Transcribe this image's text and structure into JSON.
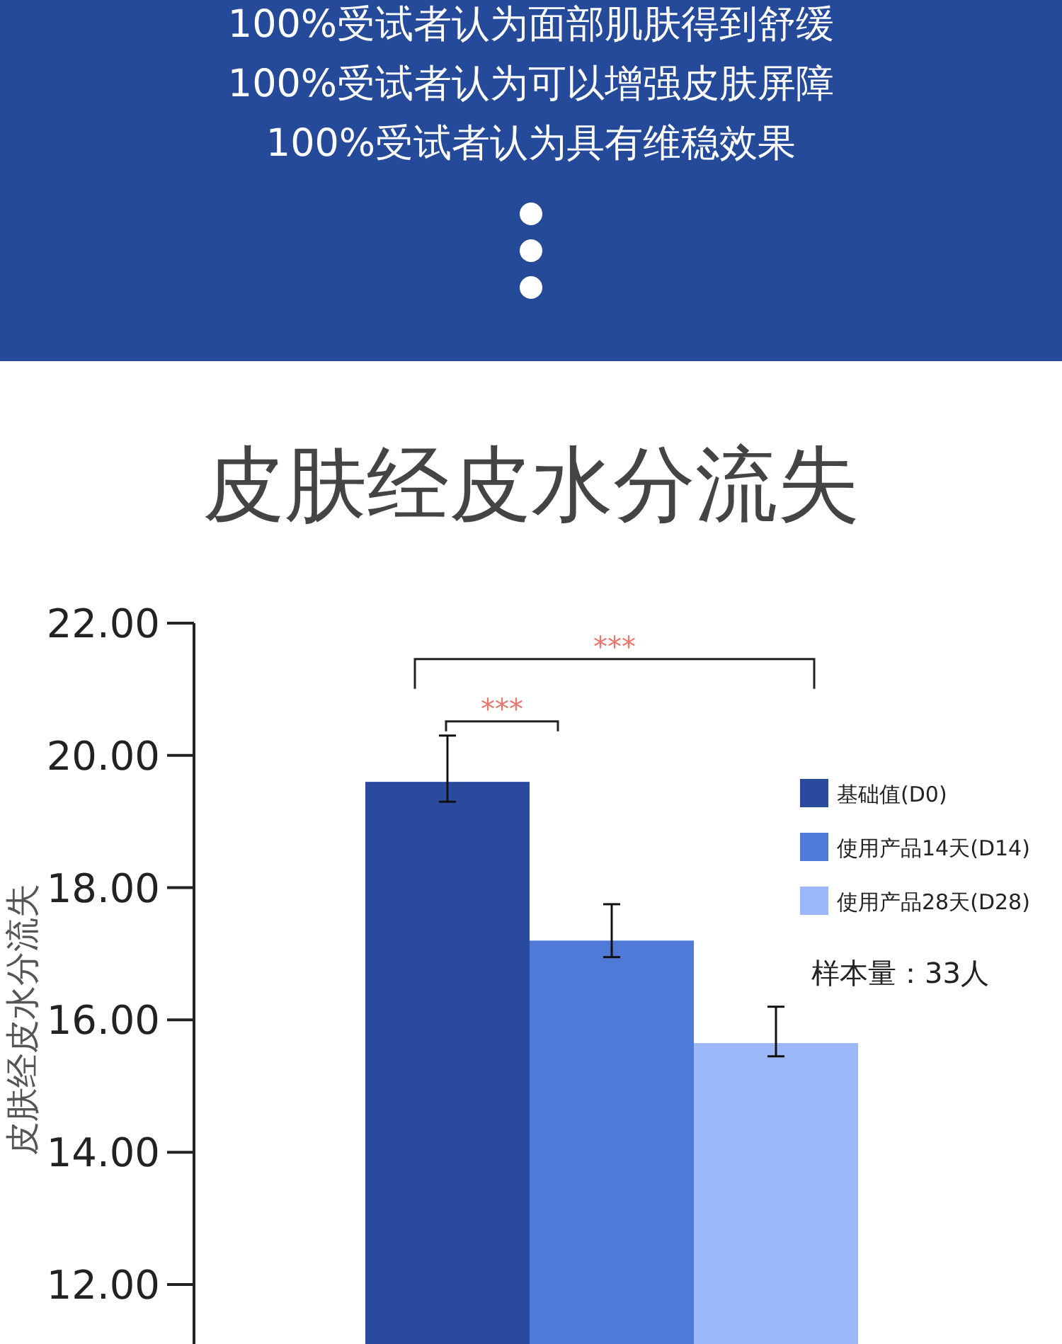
{
  "chart_data": {
    "type": "bar",
    "title": "皮肤经皮水分流失",
    "ylabel": "皮肤经皮水分流失",
    "categories": [
      null
    ],
    "series": [
      {
        "name": "基础值(D0)",
        "color": "#2a4a9e",
        "values": [
          19.6
        ],
        "errors": [
          [
            19.3,
            20.3
          ]
        ]
      },
      {
        "name": "使用产品14天(D14)",
        "color": "#4f7ad8",
        "values": [
          17.2
        ],
        "errors": [
          [
            16.95,
            17.75
          ]
        ]
      },
      {
        "name": "使用产品28天(D28)",
        "color": "#9db8f8",
        "values": [
          15.65
        ],
        "errors": [
          [
            15.45,
            16.2
          ]
        ]
      }
    ],
    "ylim": [
      11.1,
      22
    ],
    "yticks": [
      {
        "value": 12,
        "label": "12.00"
      },
      {
        "value": 14,
        "label": "14.00"
      },
      {
        "value": 16,
        "label": "16.00"
      },
      {
        "value": 18,
        "label": "18.00"
      },
      {
        "value": 20,
        "label": "20.00"
      },
      {
        "value": 22,
        "label": "22.00"
      }
    ],
    "legend": "right",
    "annotations": [
      "100%受试者认为面部肌肤得到舒缓",
      "100%受试者认为可以增强皮肤屏障",
      "100%受试者认为具有维稳效果",
      "样本量：33人",
      "***",
      "***"
    ]
  }
}
